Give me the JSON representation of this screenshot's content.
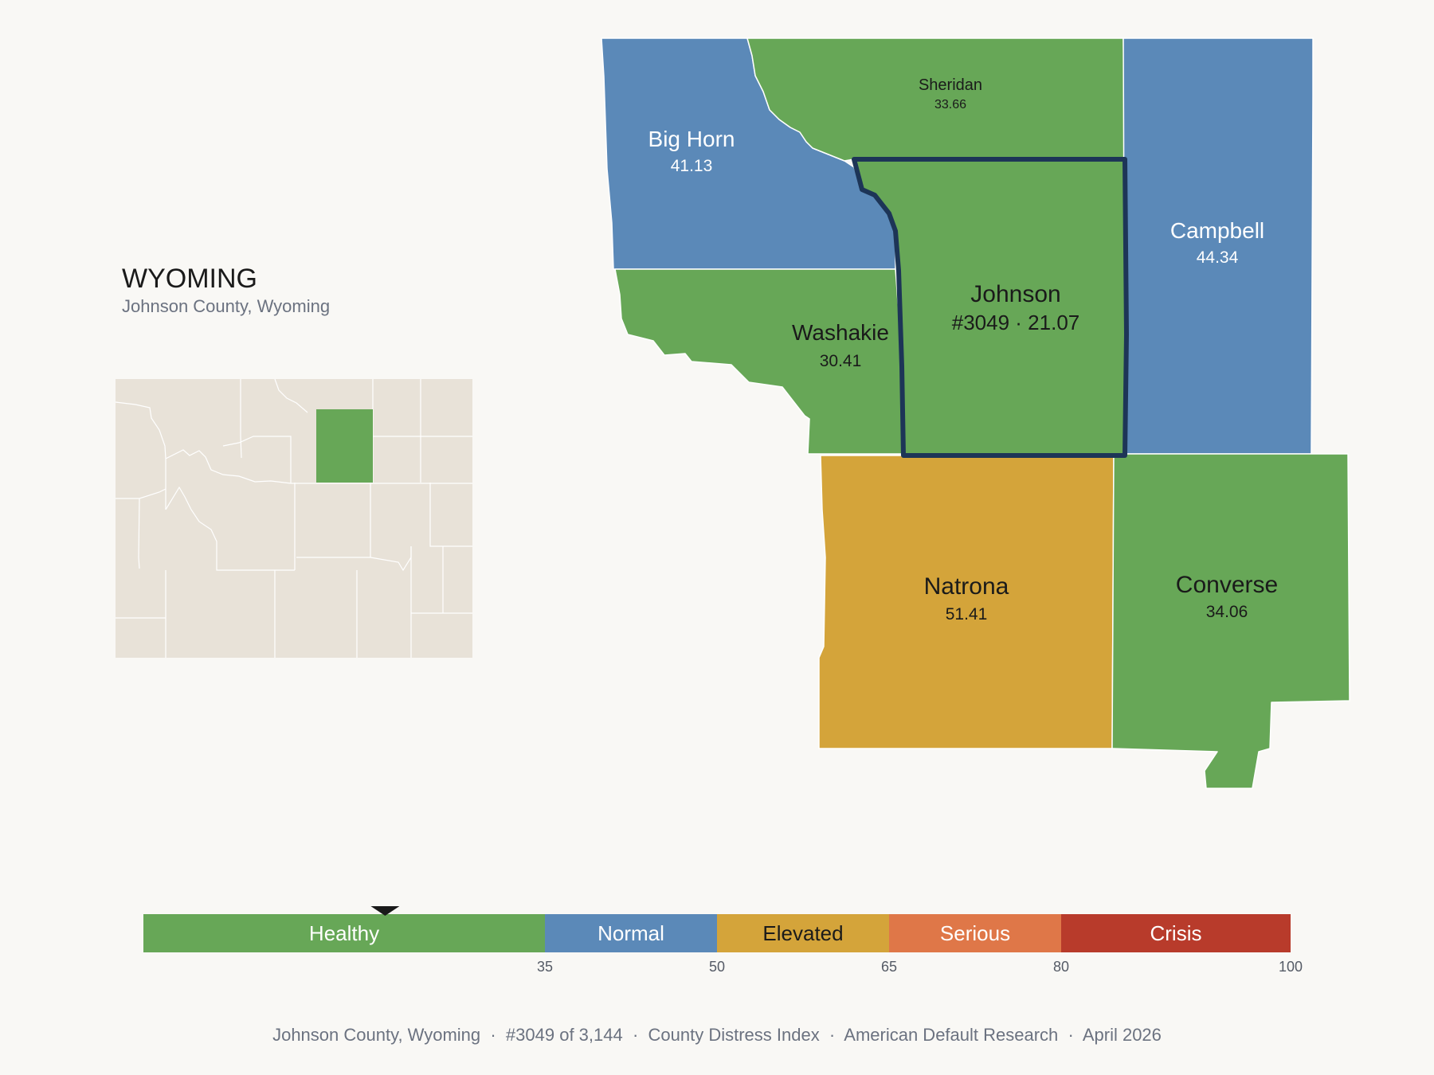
{
  "header": {
    "state": "WYOMING",
    "subtitle": "Johnson County, Wyoming"
  },
  "colors": {
    "healthy": "#67a757",
    "normal": "#5b89b8",
    "elevated": "#d4a43a",
    "serious": "#df7748",
    "crisis": "#b83b2b",
    "inset_base": "#e8e2d8",
    "focus_outline": "#1d3557"
  },
  "counties": [
    {
      "name": "Big Horn",
      "value": "41.13",
      "category": "normal"
    },
    {
      "name": "Sheridan",
      "value": "33.66",
      "category": "healthy"
    },
    {
      "name": "Campbell",
      "value": "44.34",
      "category": "normal"
    },
    {
      "name": "Washakie",
      "value": "30.41",
      "category": "healthy"
    },
    {
      "name": "Johnson",
      "value": "#3049 · 21.07",
      "category": "healthy",
      "focus": true
    },
    {
      "name": "Natrona",
      "value": "51.41",
      "category": "elevated"
    },
    {
      "name": "Converse",
      "value": "34.06",
      "category": "healthy"
    }
  ],
  "legend": {
    "marker_value": 21.07,
    "bands": [
      {
        "label": "Healthy",
        "from": 0,
        "to": 35,
        "color": "#67a757"
      },
      {
        "label": "Normal",
        "from": 35,
        "to": 50,
        "color": "#5b89b8"
      },
      {
        "label": "Elevated",
        "from": 50,
        "to": 65,
        "color": "#d4a43a"
      },
      {
        "label": "Serious",
        "from": 65,
        "to": 80,
        "color": "#df7748"
      },
      {
        "label": "Crisis",
        "from": 80,
        "to": 100,
        "color": "#b83b2b"
      }
    ],
    "ticks": [
      "35",
      "50",
      "65",
      "80",
      "100"
    ]
  },
  "footer": {
    "text": "Johnson County, Wyoming  ·  #3049 of 3,144  ·  County Distress Index  ·  American Default Research  ·  April 2026"
  }
}
